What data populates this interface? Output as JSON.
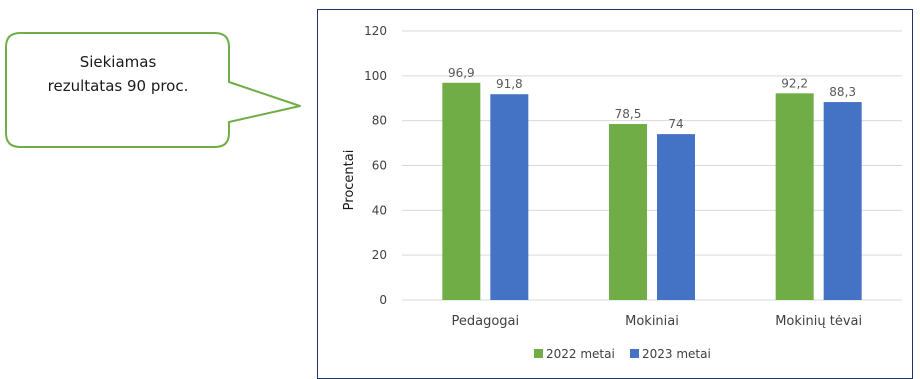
{
  "callout": {
    "line1": "Siekiamas",
    "line2": "rezultatas 90 proc.",
    "border_color": "#70ad47"
  },
  "chart_data": {
    "type": "bar",
    "categories": [
      "Pedagogai",
      "Mokiniai",
      "Mokinių tėvai"
    ],
    "series": [
      {
        "name": "2022 metai",
        "values": [
          96.9,
          78.5,
          92.2
        ],
        "labels": [
          "96,9",
          "78,5",
          "92,2"
        ],
        "color": "#70ad47"
      },
      {
        "name": "2023 metai",
        "values": [
          91.8,
          74,
          88.3
        ],
        "labels": [
          "91,8",
          "74",
          "88,3"
        ],
        "color": "#4472c4"
      }
    ],
    "title": "",
    "xlabel": "",
    "ylabel": "Procentai",
    "ylim": [
      0,
      120
    ],
    "yticks": [
      0,
      20,
      40,
      60,
      80,
      100,
      120
    ],
    "grid": true,
    "legend": "bottom"
  }
}
